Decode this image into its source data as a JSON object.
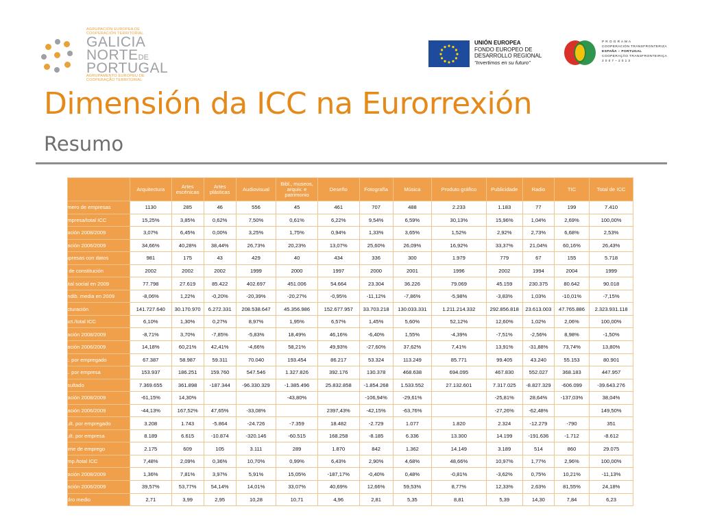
{
  "logo_left": {
    "small_top": [
      "AGRUPACIÓN EUROPEA DE",
      "COOPERACIÓN TERRITORIAL"
    ],
    "big_lines": [
      "GALICIA",
      "NORTE",
      "DE",
      "PORTUGAL"
    ],
    "small_bottom": [
      "AGRUPAMENTO EUROPEU DE",
      "COOPERAÇÃO TERRITORIAL"
    ]
  },
  "eu_logo": {
    "line1": "UNIÓN EUROPEA",
    "line2": "FONDO EUROPEO DE",
    "line3": "DESARROLLO REGIONAL",
    "line4": "\"Invertimos en su futuro\""
  },
  "poctep": {
    "line1": "P R O G R A M A",
    "line2": "COOPERACIÓN TRANSFRONTERIZA",
    "line3": "ESPAÑA – PORTUGAL",
    "line4": "COOPERAÇÃO TRANSFRONTEIRIÇA",
    "line5": "2 0 0 7  –  2 0 1 3"
  },
  "title": "Dimensión da ICC na Eurorrexión",
  "subtitle": "Resumo",
  "table": {
    "headers": [
      "",
      "Arquitectura",
      "Artes escénicas",
      "Artes plásticas",
      "Audiovisual",
      "Bibl., museos, arquiv. e patrimonio",
      "Deseño",
      "Fotografía",
      "Música",
      "Produto gráfico",
      "Publicidade",
      "Radio",
      "TIC",
      "Total de ICC"
    ],
    "rows": [
      [
        "úmero de empresas",
        "1130",
        "285",
        "46",
        "556",
        "45",
        "461",
        "707",
        "488",
        "2.233",
        "1.183",
        "77",
        "199",
        "7.410"
      ],
      [
        " empresa/total ICC",
        "15,25%",
        "3,85%",
        "0,62%",
        "7,50%",
        "0,61%",
        "6,22%",
        "9,54%",
        "6,59%",
        "30,13%",
        "15,96%",
        "1,04%",
        "2,69%",
        "100,00%"
      ],
      [
        "riación 2008/2009",
        "3,07%",
        "6,45%",
        "0,00%",
        "3,25%",
        "1,75%",
        "0,94%",
        "1,33%",
        "3,65%",
        "1,52%",
        "2,92%",
        "2,73%",
        "6,68%",
        "2,53%"
      ],
      [
        "riación 2006/2009",
        "34,66%",
        "40,28%",
        "38,44%",
        "26,73%",
        "20,23%",
        "13,07%",
        "25,60%",
        "26,09%",
        "16,92%",
        "33,37%",
        "21,04%",
        "60,16%",
        "26,43%"
      ],
      [
        "mpresas con datos",
        "981",
        "175",
        "43",
        "429",
        "40",
        "434",
        "336",
        "300",
        "1.979",
        "779",
        "67",
        "155",
        "5.718"
      ],
      [
        "o de constitución",
        "2002",
        "2002",
        "2002",
        "1999",
        "2000",
        "1997",
        "2000",
        "2001",
        "1996",
        "2002",
        "1994",
        "2004",
        "1999"
      ],
      [
        "pital social en 2009",
        "77.798",
        "27.619",
        "85.422",
        "402.697",
        "451.006",
        "54.664",
        "23.304",
        "36.226",
        "79.069",
        "45.159",
        "230.375",
        "80.642",
        "90.018"
      ],
      [
        "endib. media  en 2009",
        "-8,06%",
        "1,22%",
        "-0,20%",
        "-20,39%",
        "-20,27%",
        "-0,95%",
        "-11,12%",
        "-7,86%",
        "-5,98%",
        "-3,83%",
        "1,03%",
        "-10,01%",
        "-7,15%"
      ],
      [
        "acturación",
        "141.727.640",
        "30.170.970",
        "6.272.331",
        "208.538.647",
        "45.356.986",
        "152.677.957",
        "33.703.218",
        "130.033.331",
        "1.211.214.332",
        "292.856.818",
        "23.613.003",
        "47.765.886",
        "2.323.931.118"
      ],
      [
        " fact./total ICC",
        "6,10%",
        "1,30%",
        "0,27%",
        "8,97%",
        "1,95%",
        "6,57%",
        "1,45%",
        "5,60%",
        "52,12%",
        "12,60%",
        "1,02%",
        "2,06%",
        "100,00%"
      ],
      [
        "riación 2008/2009",
        "-8,71%",
        "3,70%",
        "-7,85%",
        "-5,83%",
        "18,49%",
        "46,16%",
        "-6,40%",
        "1,55%",
        "-4,39%",
        "-7,51%",
        "-2,56%",
        "8,98%",
        "-1,50%"
      ],
      [
        "riación 2006/2009",
        "14,18%",
        "60,21%",
        "42,41%",
        "-4,66%",
        "58,21%",
        "49,93%",
        "-27,60%",
        "37,62%",
        "7,41%",
        "13,91%",
        "-31,88%",
        "73,74%",
        "13,80%"
      ],
      [
        "ct. por empregado",
        "67.387",
        "58.987",
        "59.311",
        "70.040",
        "193.454",
        "86.217",
        "53.324",
        "113.249",
        "85.771",
        "99.405",
        "43.240",
        "55.153",
        "80.901"
      ],
      [
        "ct. por empresa",
        "153.937",
        "186.251",
        "159.760",
        "547.546",
        "1.327.826",
        "392.176",
        "130.378",
        "468.638",
        "694.095",
        "467.830",
        "552.027",
        "368.183",
        "447.957"
      ],
      [
        "esultado",
        "7.369.655",
        "361.898",
        "-187.344",
        "-96.330.329",
        "-1.385.496",
        "25.832.858",
        "-1.854.268",
        "1.533.552",
        "27.132.601",
        "7.317.025",
        "-8.827.329",
        "-606.099",
        "-39.643.276"
      ],
      [
        "riación 2008/2009",
        "-61,15%",
        "14,30%",
        "",
        "",
        "-43,80%",
        "",
        "-106,94%",
        "-29,61%",
        "",
        "-25,81%",
        "28,64%",
        "-137,03%",
        "38,04%"
      ],
      [
        "riación 2006/2009",
        "-44,13%",
        "167,52%",
        "47,65%",
        "-33,08%",
        "",
        "2397,43%",
        "-42,15%",
        "-63,76%",
        "",
        "-27,26%",
        "-62,48%",
        "",
        "149,50%"
      ],
      [
        "sult. por empregado",
        "3.208",
        "1.743",
        "-5.864",
        "-24.726",
        "-7.359",
        "18.482",
        "-2.729",
        "1.077",
        "1.820",
        "2.324",
        "-12.279",
        "-790",
        "351"
      ],
      [
        "sult. por empresa",
        "8.189",
        "6.615",
        "-10.874",
        "-320.146",
        "-60.515",
        "168.258",
        "-8.185",
        "6.336",
        "13.300",
        "14.199",
        "-191.636",
        "-1.712",
        "-8.612"
      ],
      [
        "lume de emprego",
        "2.175",
        "609",
        "105",
        "3.111",
        "289",
        "1.870",
        "842",
        "1.362",
        "14.149",
        "3.189",
        "514",
        "860",
        "29.075"
      ],
      [
        " emp./total ICC",
        "7,48%",
        "2,09%",
        "0,36%",
        "10,70%",
        "0,99%",
        "6,43%",
        "2,90%",
        "4,68%",
        "48,66%",
        "10,97%",
        "1,77%",
        "2,96%",
        "100,00%"
      ],
      [
        "riación 2008/2009",
        "1,36%",
        "7,81%",
        "3,97%",
        "5,91%",
        "15,05%",
        "-187,17%",
        "-0,40%",
        "0,48%",
        "-0,81%",
        "-3,62%",
        "0,75%",
        "10,21%",
        "-11,13%"
      ],
      [
        "riación 2006/2009",
        "39,57%",
        "53,77%",
        "54,14%",
        "14,01%",
        "33,07%",
        "40,69%",
        "12,66%",
        "59,53%",
        "8,77%",
        "12,33%",
        "2,63%",
        "81,55%",
        "24,18%"
      ],
      [
        "adro medio",
        "2,71",
        "3,99",
        "2,95",
        "10,28",
        "10,71",
        "4,96",
        "2,81",
        "5,35",
        "8,81",
        "5,39",
        "14,30",
        "7,84",
        "6,23"
      ]
    ]
  },
  "colors": {
    "title": "#e58a1a",
    "header_bg": "#f0a04b",
    "border": "#f2c58c",
    "subtitle": "#6f6f6f",
    "rule": "#8c8c8c"
  }
}
